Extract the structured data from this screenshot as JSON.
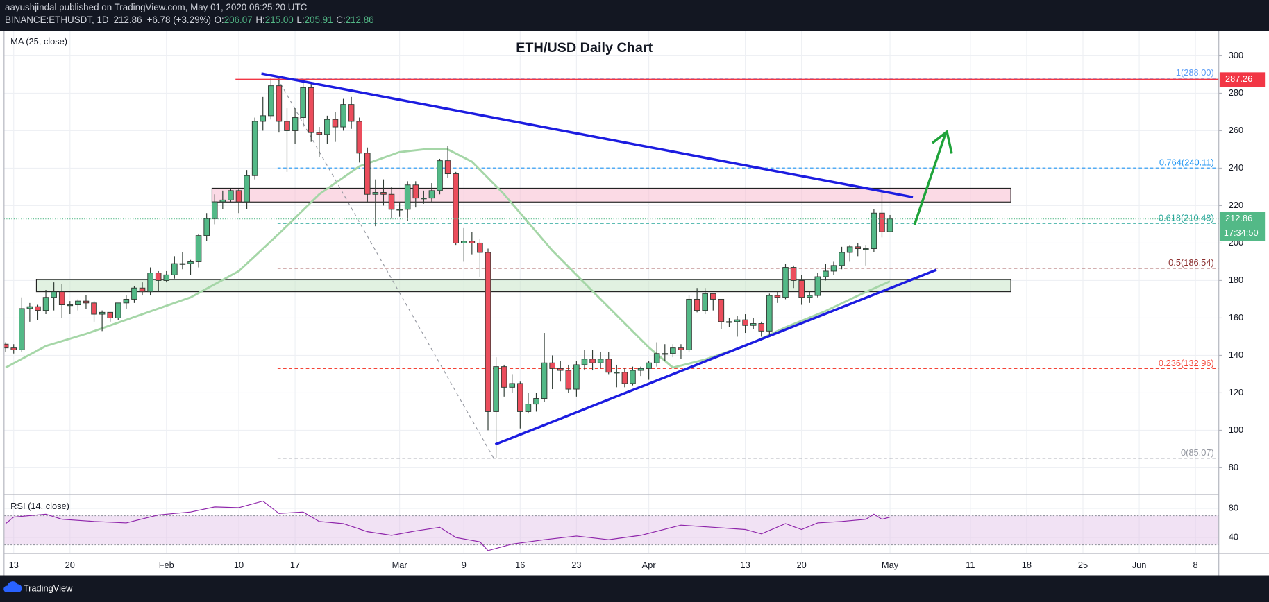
{
  "header": {
    "author": "aayushjindal published on TradingView.com, May 01, 2020 06:25:20 UTC",
    "symbol": "BINANCE:ETHUSDT, 1D",
    "last": "212.86",
    "change": "+6.78 (+3.29%)",
    "ohlc": [
      {
        "key": "O:",
        "value": "206.07"
      },
      {
        "key": "H:",
        "value": "215.00"
      },
      {
        "key": "L:",
        "value": "205.91"
      },
      {
        "key": "C:",
        "value": "212.86"
      }
    ]
  },
  "chart_data": {
    "type": "candlestick",
    "title": "ETH/USD Daily Chart",
    "x": [
      12,
      13,
      14,
      15,
      16,
      17,
      18,
      19,
      20,
      21,
      22,
      23,
      24,
      25,
      26,
      27,
      28,
      29,
      30,
      31,
      32,
      33,
      34,
      35,
      36,
      37,
      38,
      39,
      40,
      41,
      42,
      43,
      44,
      45,
      46,
      47,
      48,
      49,
      50,
      51,
      52,
      53,
      54,
      55,
      56,
      57,
      58,
      59,
      60,
      61,
      62,
      63,
      64,
      65,
      66,
      67,
      68,
      69,
      70,
      71,
      72,
      73,
      74,
      75,
      76,
      77,
      78,
      79,
      80,
      81,
      82,
      83,
      84,
      85,
      86,
      87,
      88,
      89,
      90,
      91,
      92,
      93,
      94,
      95,
      96,
      97,
      98,
      99,
      100,
      101,
      102,
      103,
      104,
      105,
      106,
      107,
      108,
      109,
      110,
      111,
      112,
      113,
      114,
      115,
      116,
      117,
      118,
      119,
      120,
      121,
      122
    ],
    "open": [
      146,
      144,
      143,
      165,
      166,
      164,
      171,
      174,
      167,
      167,
      169,
      168,
      162,
      163,
      160,
      168,
      170,
      176,
      174,
      184,
      180,
      183,
      189,
      189,
      190,
      204,
      213,
      222,
      223,
      228,
      222,
      236,
      265,
      268,
      284,
      265,
      260,
      267,
      283,
      259,
      258,
      266,
      262,
      274,
      265,
      248,
      226,
      227,
      226,
      218,
      218,
      231,
      224,
      224,
      228,
      244,
      237,
      200,
      201,
      200,
      195,
      110,
      134,
      123,
      125,
      110,
      114,
      117,
      136,
      133,
      132,
      122,
      135,
      138,
      136,
      138,
      131,
      131,
      125,
      132,
      133,
      136,
      141,
      141,
      144,
      143,
      170,
      164,
      173,
      170,
      158,
      158,
      159,
      156,
      157,
      153,
      172,
      171,
      187,
      180,
      171,
      172,
      182,
      185,
      188,
      195,
      198,
      197,
      197,
      216,
      206.07
    ],
    "high": [
      147,
      146,
      171,
      168,
      167,
      175,
      179,
      178,
      169,
      170,
      172,
      169,
      164,
      163,
      168,
      172,
      177,
      179,
      187,
      185,
      185,
      193,
      195,
      191,
      205,
      216,
      226,
      228,
      229,
      229,
      239,
      267,
      278,
      288,
      288,
      272,
      272,
      287,
      285,
      262,
      268,
      270,
      277,
      278,
      267,
      251,
      234,
      234,
      230,
      222,
      233,
      233,
      228,
      232,
      245,
      252,
      238,
      208,
      206,
      202,
      197,
      139,
      135,
      130,
      126,
      120,
      120,
      152,
      140,
      137,
      135,
      137,
      143,
      143,
      142,
      142,
      135,
      133,
      134,
      134,
      137,
      147,
      146,
      146,
      146,
      172,
      176,
      176,
      173,
      170,
      160,
      161,
      162,
      160,
      158,
      173,
      174,
      189,
      188,
      183,
      174,
      184,
      189,
      190,
      198,
      199,
      200,
      199,
      218,
      227,
      215
    ],
    "low": [
      142,
      141,
      142,
      158,
      159,
      162,
      164,
      160,
      162,
      164,
      165,
      158,
      153,
      158,
      159,
      165,
      168,
      172,
      172,
      174,
      179,
      181,
      186,
      183,
      187,
      201,
      210,
      218,
      222,
      216,
      218,
      234,
      260,
      266,
      259,
      238,
      253,
      262,
      254,
      246,
      253,
      254,
      260,
      261,
      243,
      222,
      209,
      220,
      213,
      214,
      212,
      219,
      221,
      222,
      226,
      235,
      199,
      190,
      194,
      182,
      100,
      85,
      118,
      120,
      101,
      109,
      110,
      115,
      122,
      126,
      120,
      118,
      132,
      132,
      133,
      130,
      123,
      123,
      124,
      129,
      127,
      134,
      137,
      139,
      138,
      142,
      163,
      162,
      164,
      154,
      155,
      150,
      152,
      154,
      150,
      150,
      168,
      170,
      176,
      167,
      168,
      171,
      180,
      183,
      186,
      190,
      193,
      188,
      195,
      203,
      205.91
    ],
    "close": [
      144,
      143,
      165,
      166,
      164,
      171,
      174,
      167,
      167,
      169,
      168,
      162,
      163,
      160,
      168,
      170,
      176,
      174,
      184,
      180,
      183,
      189,
      189,
      190,
      204,
      213,
      222,
      223,
      228,
      222,
      236,
      265,
      268,
      284,
      265,
      260,
      267,
      283,
      259,
      258,
      266,
      262,
      274,
      265,
      248,
      226,
      227,
      226,
      218,
      218,
      231,
      224,
      224,
      228,
      244,
      237,
      200,
      201,
      200,
      195,
      110,
      134,
      123,
      125,
      110,
      114,
      117,
      136,
      133,
      132,
      122,
      135,
      138,
      136,
      138,
      131,
      131,
      125,
      132,
      133,
      136,
      141,
      141,
      144,
      143,
      170,
      164,
      173,
      170,
      158,
      158,
      159,
      156,
      157,
      153,
      172,
      171,
      187,
      180,
      171,
      172,
      182,
      185,
      188,
      195,
      198,
      197,
      197,
      216,
      206,
      212.86
    ],
    "up_color": "#53b987",
    "down_color": "#eb4d5c",
    "border_color": "#2f3b33",
    "xlim": [
      11.8,
      162.9
    ],
    "xticks": [
      {
        "value": 13,
        "label": "13"
      },
      {
        "value": 20,
        "label": "20"
      },
      {
        "value": 32,
        "label": "Feb"
      },
      {
        "value": 41,
        "label": "10"
      },
      {
        "value": 48,
        "label": "17"
      },
      {
        "value": 61,
        "label": "Mar"
      },
      {
        "value": 69,
        "label": "9"
      },
      {
        "value": 76,
        "label": "16"
      },
      {
        "value": 83,
        "label": "23"
      },
      {
        "value": 92,
        "label": "Apr"
      },
      {
        "value": 104,
        "label": "13"
      },
      {
        "value": 111,
        "label": "20"
      },
      {
        "value": 122,
        "label": "May"
      },
      {
        "value": 132,
        "label": "11"
      },
      {
        "value": 139,
        "label": "18"
      },
      {
        "value": 146,
        "label": "25"
      },
      {
        "value": 153,
        "label": "Jun"
      },
      {
        "value": 160,
        "label": "8"
      }
    ],
    "ylim": [
      65.7,
      313.4
    ],
    "yticks": [
      80,
      100,
      120,
      140,
      160,
      180,
      200,
      220,
      240,
      260,
      280,
      300
    ],
    "grid": true,
    "ma": {
      "name": "MA (25, close)",
      "color": "#a5d6a7",
      "x": [
        12,
        17,
        22,
        28,
        35,
        41,
        46,
        51,
        56,
        61,
        64,
        67,
        70,
        74,
        80,
        86,
        92,
        95,
        99,
        104,
        109,
        114,
        118,
        122
      ],
      "values": [
        133.5,
        145,
        151.5,
        160.5,
        171,
        185,
        205,
        226,
        241,
        248.6,
        250,
        250,
        243.5,
        226,
        196,
        170,
        144.3,
        133.5,
        137.8,
        145,
        155,
        163.7,
        171.9,
        179.6
      ]
    },
    "fib_levels": [
      {
        "label": "1(288.00)",
        "value": 288.0,
        "color": "#5b9cf6"
      },
      {
        "label": "0.764(240.11)",
        "value": 240.11,
        "color": "#2196f3"
      },
      {
        "label": "0.618(210.48)",
        "value": 210.48,
        "color": "#26a69a"
      },
      {
        "label": "0.5(186.54)",
        "value": 186.54,
        "color": "#8b2e2e"
      },
      {
        "label": "0.236(132.96)",
        "value": 132.96,
        "color": "#f44336"
      },
      {
        "label": "0(85.07)",
        "value": 85.07,
        "color": "#9598a1"
      }
    ],
    "price_line": {
      "label": "287.26",
      "value": 287.26,
      "color": "#f23645"
    },
    "last_price": {
      "label": "212.86",
      "value": 212.86,
      "color": "#53b987",
      "countdown": "17:34:50"
    },
    "rsi": {
      "name": "RSI (14, close)",
      "color": "#8e24aa",
      "x": [
        12,
        13,
        17,
        19,
        23,
        27,
        31,
        35,
        38,
        41,
        44,
        46,
        49,
        51,
        54,
        57,
        60,
        63,
        66,
        68,
        71,
        72,
        75,
        79,
        83,
        87,
        91,
        96,
        100,
        104,
        106,
        109,
        111,
        113,
        116,
        119,
        120,
        121,
        122
      ],
      "values": [
        59,
        68,
        72,
        65,
        62,
        60,
        71,
        75,
        82,
        81,
        90,
        73,
        75,
        62,
        59,
        48,
        43,
        49,
        54,
        40,
        34,
        22,
        31,
        37,
        42,
        37,
        43,
        57,
        54,
        51,
        45,
        59,
        51,
        60,
        62,
        65,
        72,
        65,
        68
      ],
      "ylim": [
        18,
        99
      ],
      "yticks": [
        40,
        80
      ],
      "band": [
        30,
        70
      ],
      "band_color": "#e1bee7"
    }
  },
  "footer": {
    "brand": "TradingView"
  }
}
